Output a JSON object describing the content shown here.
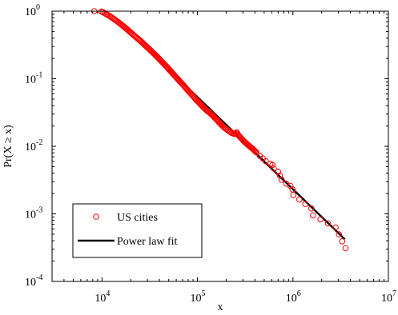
{
  "chart_data": {
    "type": "scatter",
    "xlabel": "x",
    "ylabel": "Pr(X ≥ x)",
    "xscale": "log",
    "yscale": "log",
    "xlim": [
      3000,
      10000000
    ],
    "ylim": [
      0.0001,
      1
    ],
    "grid": false,
    "legend_position": "bottom-left",
    "x_ticks": [
      {
        "value": 10000,
        "base": "10",
        "exp": "4"
      },
      {
        "value": 100000,
        "base": "10",
        "exp": "5"
      },
      {
        "value": 1000000,
        "base": "10",
        "exp": "6"
      },
      {
        "value": 10000000,
        "base": "10",
        "exp": "7"
      }
    ],
    "y_ticks": [
      {
        "value": 1,
        "base": "10",
        "exp": "0"
      },
      {
        "value": 0.1,
        "base": "10",
        "exp": "-1"
      },
      {
        "value": 0.01,
        "base": "10",
        "exp": "-2"
      },
      {
        "value": 0.001,
        "base": "10",
        "exp": "-3"
      },
      {
        "value": 0.0001,
        "base": "10",
        "exp": "-4"
      }
    ],
    "series": [
      {
        "name": "US cities",
        "type": "scatter",
        "marker": "open-circle",
        "color": "#ff0000",
        "points": [
          [
            8300,
            1.0
          ],
          [
            9900,
            0.99
          ],
          [
            10200,
            0.97
          ],
          [
            10600,
            0.94
          ],
          [
            11000,
            0.91
          ],
          [
            11500,
            0.88
          ],
          [
            12000,
            0.85
          ],
          [
            12600,
            0.81
          ],
          [
            13300,
            0.77
          ],
          [
            14000,
            0.73
          ],
          [
            14800,
            0.69
          ],
          [
            15600,
            0.65
          ],
          [
            16500,
            0.61
          ],
          [
            17500,
            0.57
          ],
          [
            18600,
            0.53
          ],
          [
            19800,
            0.49
          ],
          [
            21200,
            0.45
          ],
          [
            22700,
            0.415
          ],
          [
            24400,
            0.38
          ],
          [
            26200,
            0.347
          ],
          [
            28200,
            0.315
          ],
          [
            30400,
            0.285
          ],
          [
            32800,
            0.258
          ],
          [
            35400,
            0.232
          ],
          [
            38200,
            0.208
          ],
          [
            41300,
            0.186
          ],
          [
            44600,
            0.166
          ],
          [
            48200,
            0.148
          ],
          [
            52000,
            0.131
          ],
          [
            56200,
            0.116
          ],
          [
            60700,
            0.103
          ],
          [
            65600,
            0.091
          ],
          [
            70900,
            0.081
          ],
          [
            76600,
            0.071
          ],
          [
            82800,
            0.063
          ],
          [
            89500,
            0.056
          ],
          [
            96700,
            0.049
          ],
          [
            104500,
            0.044
          ],
          [
            113000,
            0.039
          ],
          [
            122000,
            0.035
          ],
          [
            132000,
            0.032
          ],
          [
            143000,
            0.029
          ],
          [
            154000,
            0.026
          ],
          [
            167000,
            0.023
          ],
          [
            180000,
            0.0205
          ],
          [
            195000,
            0.0185
          ],
          [
            211000,
            0.017
          ],
          [
            228000,
            0.0158
          ],
          [
            246000,
            0.0152
          ],
          [
            258000,
            0.0161
          ],
          [
            268000,
            0.0147
          ],
          [
            285000,
            0.0133
          ],
          [
            305000,
            0.012
          ],
          [
            330000,
            0.0108
          ],
          [
            355000,
            0.0099
          ],
          [
            385000,
            0.009
          ],
          [
            415000,
            0.0081
          ],
          [
            450000,
            0.0072
          ],
          [
            485000,
            0.0066
          ],
          [
            520000,
            0.006
          ],
          [
            580000,
            0.0055
          ],
          [
            610000,
            0.0053
          ],
          [
            630000,
            0.0047
          ],
          [
            700000,
            0.0042
          ],
          [
            730000,
            0.0037
          ],
          [
            760000,
            0.0032
          ],
          [
            850000,
            0.0028
          ],
          [
            940000,
            0.0026
          ],
          [
            990000,
            0.0023
          ],
          [
            1010000,
            0.0019
          ],
          [
            1560000,
            0.0012
          ],
          [
            1620000,
            0.00095
          ],
          [
            2800000,
            0.00063
          ],
          [
            3550000,
            0.00031
          ]
        ]
      },
      {
        "name": "Power law fit",
        "type": "line",
        "color": "#000000",
        "points": [
          [
            50000,
            0.138
          ],
          [
            3500000,
            0.00042
          ]
        ]
      }
    ]
  }
}
